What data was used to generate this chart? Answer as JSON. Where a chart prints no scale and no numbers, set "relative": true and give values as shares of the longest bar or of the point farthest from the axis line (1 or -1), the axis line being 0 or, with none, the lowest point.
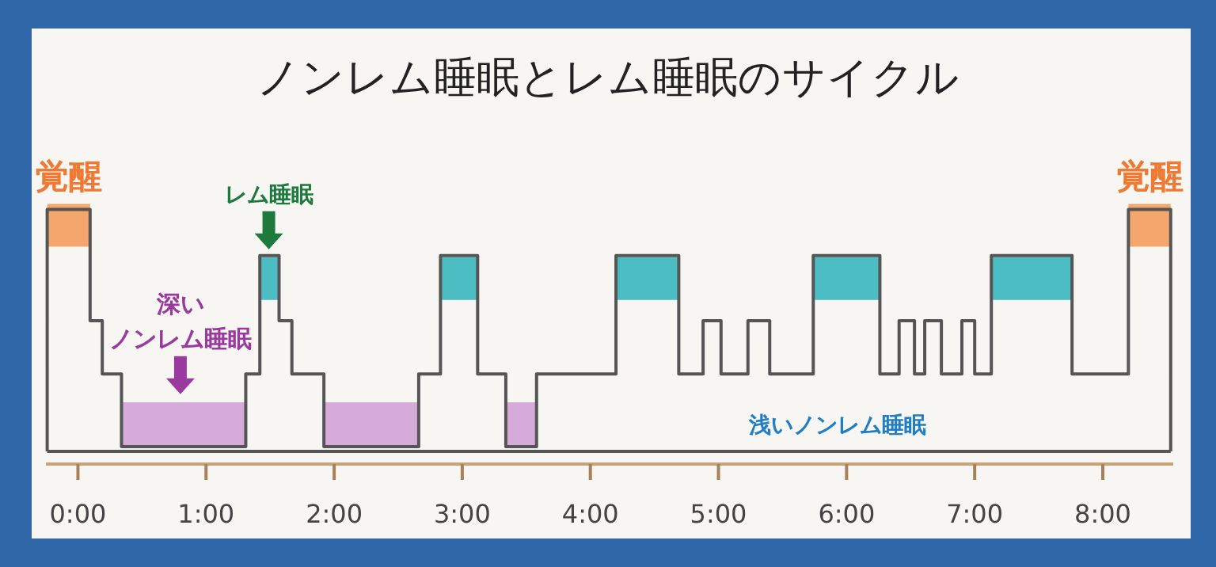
{
  "chart_data": {
    "type": "step",
    "title": "ノンレム睡眠とレム睡眠のサイクル",
    "relative": true,
    "xlim": [
      -0.25,
      8.55
    ],
    "xticks": [
      {
        "value": 0,
        "label": "0:00"
      },
      {
        "value": 1,
        "label": "1:00"
      },
      {
        "value": 2,
        "label": "2:00"
      },
      {
        "value": 3,
        "label": "3:00"
      },
      {
        "value": 4,
        "label": "4:00"
      },
      {
        "value": 5,
        "label": "5:00"
      },
      {
        "value": 6,
        "label": "6:00"
      },
      {
        "value": 7,
        "label": "7:00"
      },
      {
        "value": 8,
        "label": "8:00"
      }
    ],
    "series": [
      {
        "type": "line",
        "color": "#f5a66c",
        "x": [
          -0.24,
          0.095
        ],
        "values": [
          0.935,
          0.935
        ]
      },
      {
        "type": "line",
        "color": "#f5a66c",
        "x": [
          8.2,
          8.53
        ],
        "values": [
          0.935,
          0.935
        ]
      },
      {
        "type": "line",
        "color": "#4dbdc4",
        "x": [
          1.42,
          1.57
        ],
        "values": [
          0.715,
          0.715
        ]
      },
      {
        "type": "line",
        "color": "#4dbdc4",
        "x": [
          2.83,
          3.12
        ],
        "values": [
          0.715,
          0.715
        ]
      },
      {
        "type": "line",
        "color": "#4dbdc4",
        "x": [
          4.2,
          4.69
        ],
        "values": [
          0.715,
          0.715
        ]
      },
      {
        "type": "line",
        "color": "#4dbdc4",
        "x": [
          5.74,
          6.26
        ],
        "values": [
          0.715,
          0.715
        ]
      },
      {
        "type": "line",
        "color": "#4dbdc4",
        "x": [
          7.13,
          7.76
        ],
        "values": [
          0.715,
          0.715
        ]
      },
      {
        "type": "line",
        "color": "#d6aad9",
        "x": [
          0.34,
          1.31
        ],
        "values": [
          0.115,
          0.115
        ]
      },
      {
        "type": "line",
        "color": "#d6aad9",
        "x": [
          1.92,
          2.66
        ],
        "values": [
          0.115,
          0.115
        ]
      },
      {
        "type": "line",
        "color": "#d6aad9",
        "x": [
          3.34,
          3.58
        ],
        "values": [
          0.115,
          0.115
        ]
      },
      {
        "color": "#555555",
        "x": [
          -0.24,
          -0.24,
          0.095,
          0.19,
          0.34,
          1.31,
          1.42,
          1.57,
          1.67,
          1.92,
          2.66,
          2.83,
          3.12,
          3.34,
          3.58,
          4.2,
          4.69,
          4.88,
          5.02,
          5.23,
          5.4,
          5.74,
          6.26,
          6.41,
          6.53,
          6.61,
          6.74,
          6.9,
          7.0,
          7.13,
          7.76,
          8.2,
          8.53
        ],
        "values": [
          0,
          1,
          0.54,
          0.32,
          0.02,
          0.32,
          0.81,
          0.54,
          0.32,
          0.02,
          0.32,
          0.81,
          0.32,
          0.02,
          0.32,
          0.81,
          0.32,
          0.54,
          0.32,
          0.54,
          0.32,
          0.81,
          0.32,
          0.54,
          0.32,
          0.54,
          0.32,
          0.54,
          0.32,
          0.81,
          0.32,
          1,
          0
        ]
      }
    ],
    "annotations": [
      {
        "text": "覚醒",
        "x": -0.07,
        "y": 1
      },
      {
        "text": "覚醒",
        "x": 8.37,
        "y": 1
      },
      {
        "text": "レム睡眠",
        "x": 1.49,
        "y": 0.81
      },
      {
        "text": "深いノンレム睡眠",
        "x": 0.8,
        "y": 0.21
      },
      "浅いノンレム睡眠"
    ]
  }
}
